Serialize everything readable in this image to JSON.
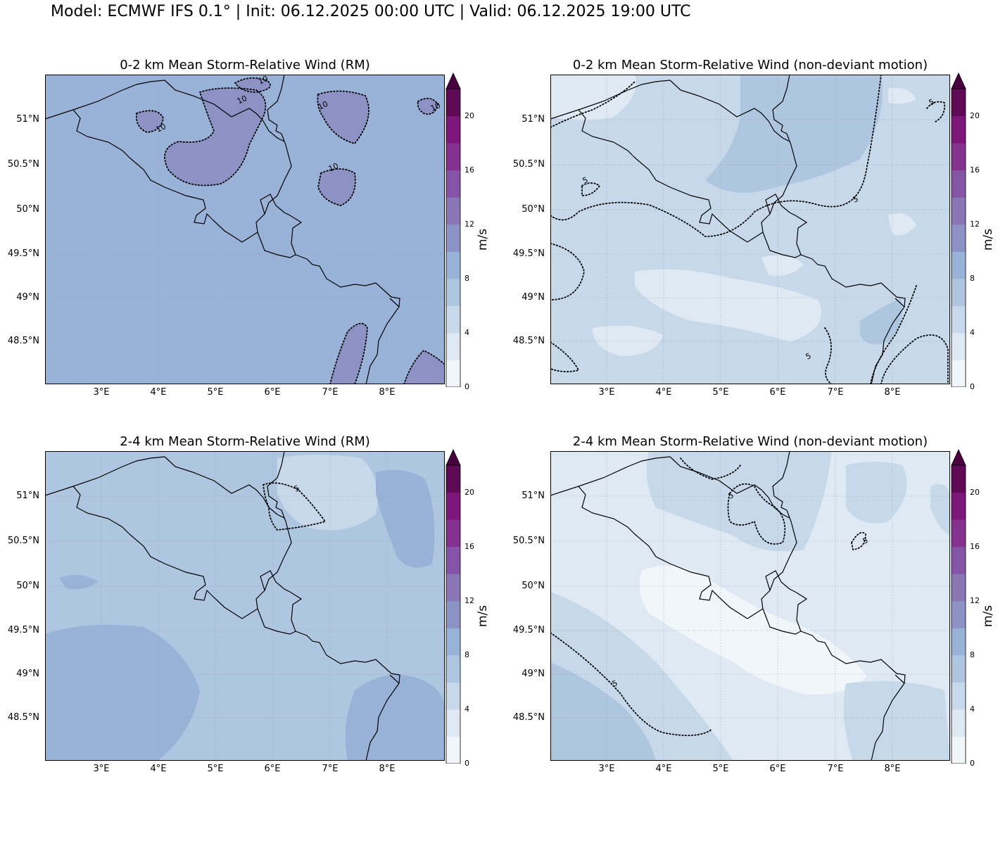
{
  "title": "Model: ECMWF IFS 0.1° | Init: 06.12.2025 00:00 UTC | Valid: 06.12.2025 19:00 UTC",
  "colorbar": {
    "label": "m/s",
    "ticks": [
      "0",
      "4",
      "8",
      "12",
      "16",
      "20"
    ],
    "colors": [
      "#f1f6fa",
      "#dfe9f3",
      "#c7d8ea",
      "#aec6e0",
      "#99b2d7",
      "#8c92c4",
      "#8b76b5",
      "#8654a6",
      "#85318f",
      "#7d177b",
      "#5f0a55",
      "#48003f"
    ]
  },
  "axes": {
    "lat_labels": [
      "51°N",
      "50.5°N",
      "50°N",
      "49.5°N",
      "49°N",
      "48.5°N"
    ],
    "lon_labels": [
      "3°E",
      "4°E",
      "5°E",
      "6°E",
      "7°E",
      "8°E"
    ]
  },
  "panels": [
    {
      "title": "0-2 km Mean Storm-Relative Wind (RM)",
      "base_color": "#99b2d7",
      "contour_labels": [
        "10",
        "10",
        "10",
        "10",
        "10",
        "10"
      ]
    },
    {
      "title": "0-2 km Mean Storm-Relative Wind (non-deviant motion)",
      "base_color": "#c7d8ea",
      "contour_labels": [
        "5",
        "5",
        "5",
        "5"
      ]
    },
    {
      "title": "2-4 km Mean Storm-Relative Wind (RM)",
      "base_color": "#aec6e0",
      "contour_labels": [
        "5"
      ]
    },
    {
      "title": "2-4 km Mean Storm-Relative Wind (non-deviant motion)",
      "base_color": "#dfe9f3",
      "contour_labels": [
        "5",
        "5",
        "5"
      ]
    }
  ]
}
